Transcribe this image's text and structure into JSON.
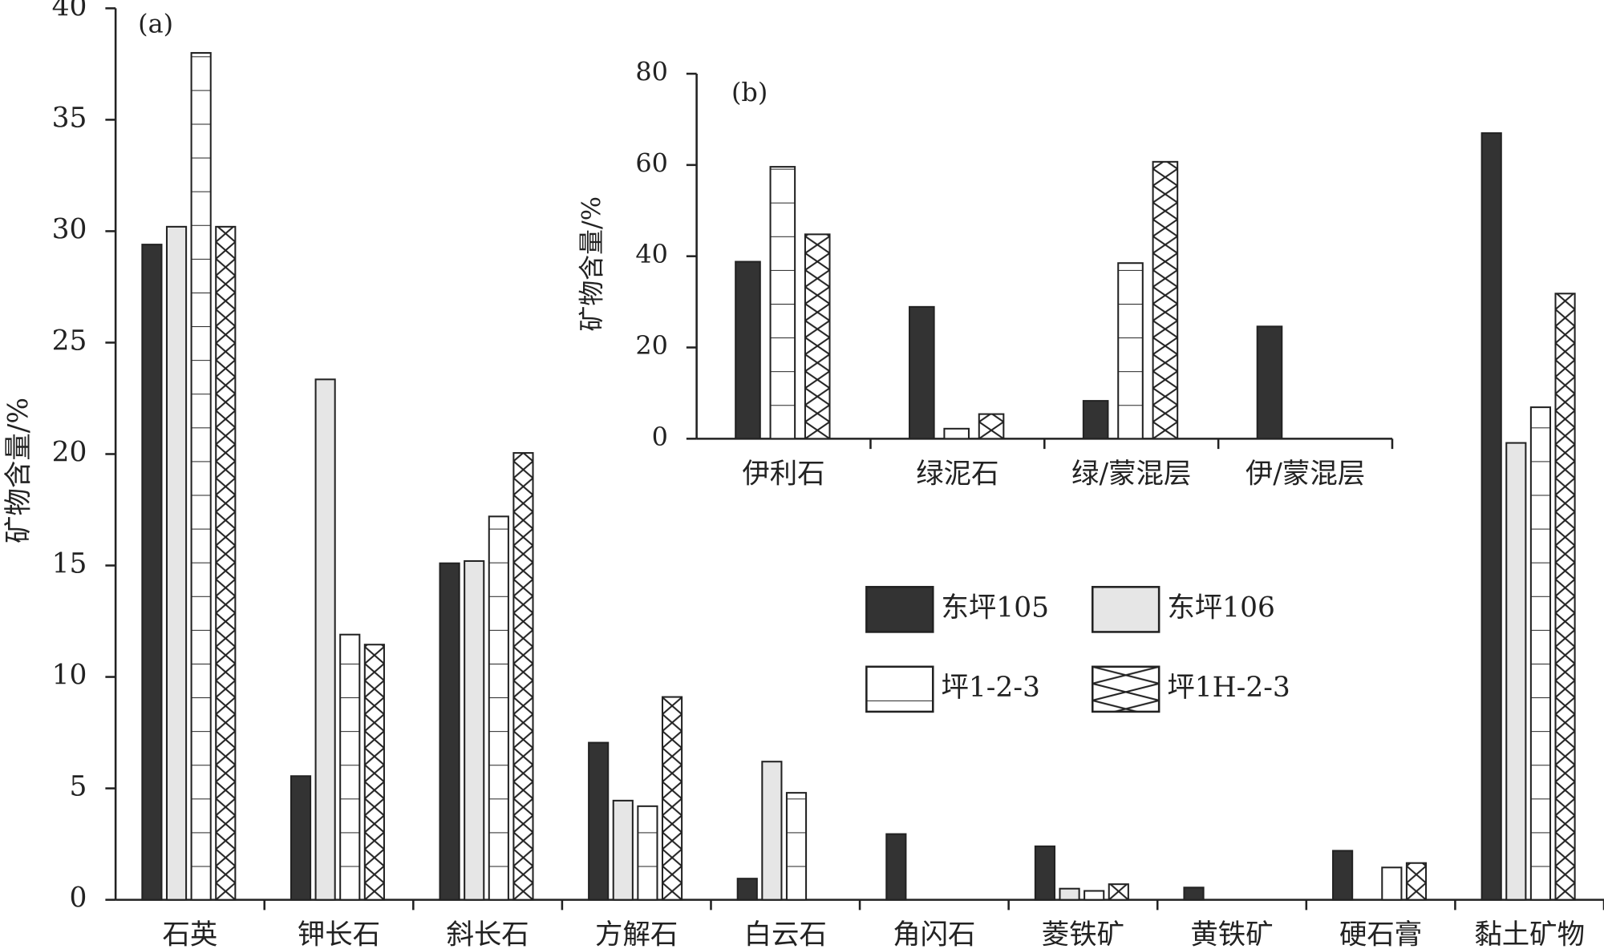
{
  "chart_data": [
    {
      "type": "bar",
      "panel_label": "(a)",
      "y_label": "矿物含量/%",
      "categories": [
        "石英",
        "钾长石",
        "斜长石",
        "方解石",
        "白云石",
        "角闪石",
        "菱铁矿",
        "黄铁矿",
        "硬石膏",
        "黏土矿物"
      ],
      "series": [
        {
          "name": "东坪105",
          "color": "#333333",
          "pattern": "none",
          "values": [
            29.4,
            5.55,
            15.1,
            7.05,
            0.95,
            2.95,
            2.4,
            0.55,
            2.2,
            34.4
          ]
        },
        {
          "name": "东坪106",
          "color": "#e6e6e6",
          "pattern": "none",
          "values": [
            30.2,
            23.35,
            15.2,
            4.45,
            6.2,
            null,
            0.5,
            null,
            null,
            20.5
          ]
        },
        {
          "name": "坪1-2-3",
          "color": "#ffffff",
          "pattern": "horizontal",
          "values": [
            38.0,
            11.9,
            17.2,
            4.2,
            4.8,
            null,
            0.4,
            null,
            1.45,
            22.1
          ]
        },
        {
          "name": "坪1H-2-3",
          "color": "#ffffff",
          "pattern": "cross",
          "values": [
            30.2,
            11.45,
            20.05,
            9.1,
            null,
            null,
            0.7,
            null,
            1.65,
            27.2
          ]
        }
      ],
      "ylim": [
        0,
        40
      ],
      "yticks": [
        0,
        5,
        10,
        15,
        20,
        25,
        30,
        35,
        40
      ],
      "grid": false
    },
    {
      "type": "bar",
      "panel_label": "(b)",
      "y_label": "矿物含量/%",
      "categories": [
        "伊利石",
        "绿泥石",
        "绿/蒙混层",
        "伊/蒙混层"
      ],
      "series": [
        {
          "color": "#333333",
          "pattern": "none",
          "values": [
            38.8,
            28.9,
            8.3,
            24.6
          ]
        },
        {
          "color": "#ffffff",
          "pattern": "horizontal",
          "values": [
            59.6,
            2.2,
            38.5,
            null
          ]
        },
        {
          "color": "#ffffff",
          "pattern": "cross",
          "values": [
            44.8,
            5.4,
            60.7,
            null
          ]
        }
      ],
      "ylim": [
        0,
        80
      ],
      "yticks": [
        0,
        20,
        40,
        60,
        80
      ],
      "grid": false
    }
  ]
}
